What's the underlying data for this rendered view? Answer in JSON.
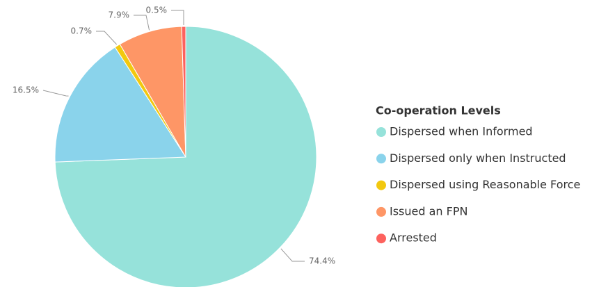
{
  "chart_data": {
    "type": "pie",
    "legend_title": "Co-operation Levels",
    "categories": [
      "Dispersed when Informed",
      "Dispersed only when Instructed",
      "Dispersed using Reasonable Force",
      "Issued an FPN",
      "Arrested"
    ],
    "values": [
      74.4,
      16.5,
      0.7,
      7.9,
      0.5
    ],
    "value_labels": [
      "74.4%",
      "16.5%",
      "0.7%",
      "7.9%",
      "0.5%"
    ],
    "colors": [
      "#96E2DA",
      "#8AD3EB",
      "#F2C80F",
      "#FE9666",
      "#FD625E"
    ],
    "legend": "right"
  }
}
